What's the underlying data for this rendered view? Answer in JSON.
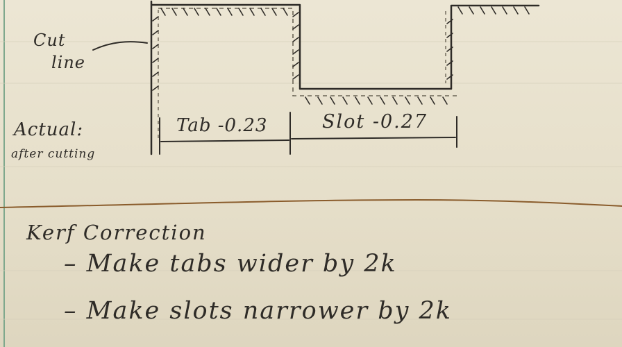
{
  "labels": {
    "cut_line_1": "Cut",
    "cut_line_2": "line",
    "actual_1": "Actual:",
    "actual_2": "after cutting",
    "tab": "Tab -0.23",
    "slot": "Slot -0.27"
  },
  "notes": {
    "title": "Kerf Correction",
    "bullets": [
      "– Make tabs wider by 2k",
      "– Make slots narrower by 2k"
    ]
  },
  "colors": {
    "paper": "#e9e2cf",
    "ink": "#2e2b27",
    "pencil": "#6b6456",
    "divider": "#8a5c2c",
    "margin_rule": "#7fa88d"
  }
}
